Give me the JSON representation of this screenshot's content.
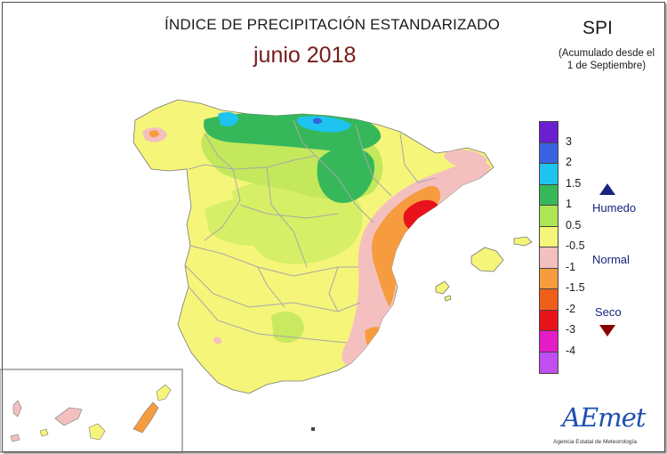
{
  "header": {
    "title": "ÍNDICE DE PRECIPITACIÓN ESTANDARIZADO",
    "subtitle": "junio 2018",
    "index_label": "SPI",
    "accumulation_line1": "(Acumulado desde el",
    "accumulation_line2": "1 de Septiembre)"
  },
  "legend": {
    "classes": [
      {
        "color": "#6a1fd1"
      },
      {
        "color": "#3a62e0"
      },
      {
        "color": "#1ec4ef"
      },
      {
        "color": "#36b85a"
      },
      {
        "color": "#aee655"
      },
      {
        "color": "#f5f57a"
      },
      {
        "color": "#f4c0bf"
      },
      {
        "color": "#f79c3e"
      },
      {
        "color": "#f05f1a"
      },
      {
        "color": "#e8121b"
      },
      {
        "color": "#e31cc8"
      },
      {
        "color": "#c04ef0"
      }
    ],
    "tick_labels": [
      "3",
      "2",
      "1.5",
      "1",
      "0.5",
      "-0.5",
      "-1",
      "-1.5",
      "-2",
      "-3",
      "-4"
    ],
    "humid_label": "Humedo",
    "normal_label": "Normal",
    "dry_label": "Seco",
    "humid_color": "#1a237e",
    "dry_color": "#8b0000"
  },
  "logo": {
    "name": "AEmet",
    "caption": "Agencia Estatal de Meteorología"
  }
}
